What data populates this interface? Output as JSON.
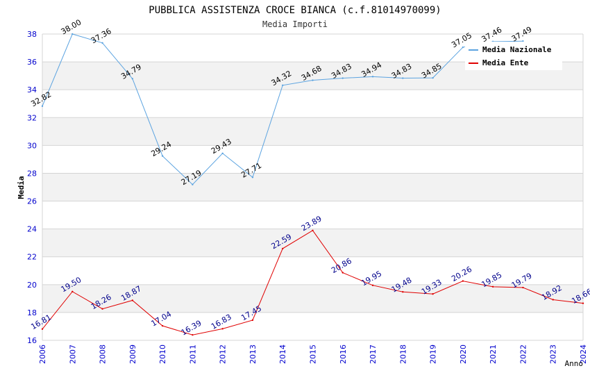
{
  "chart_data": {
    "type": "line",
    "title": "PUBBLICA ASSISTENZA CROCE BIANCA (c.f.81014970099)",
    "subtitle": "Media Importi",
    "xlabel": "Anno",
    "ylabel": "Media",
    "ylim": [
      16,
      38
    ],
    "y_ticks": [
      16,
      18,
      20,
      22,
      24,
      26,
      28,
      30,
      32,
      34,
      36,
      38
    ],
    "grid": true,
    "legend_position": "top-right",
    "categories": [
      "2006",
      "2007",
      "2008",
      "2009",
      "2010",
      "2011",
      "2012",
      "2013",
      "2014",
      "2015",
      "2016",
      "2017",
      "2018",
      "2019",
      "2020",
      "2021",
      "2022",
      "2023",
      "2024"
    ],
    "series": [
      {
        "name": "Media Nazionale",
        "color": "#5ba3e0",
        "label_color": "#000000",
        "values": [
          32.82,
          38.0,
          37.36,
          34.79,
          29.24,
          27.19,
          29.43,
          27.71,
          34.32,
          34.68,
          34.83,
          34.94,
          34.83,
          34.85,
          37.05,
          37.46,
          37.49,
          null,
          null
        ],
        "labels": [
          "32.82",
          "38.00",
          "37.36",
          "34.79",
          "29.24",
          "27.19",
          "29.43",
          "27.71",
          "34.32",
          "34.68",
          "34.83",
          "34.94",
          "34.83",
          "34.85",
          "37.05",
          "37.46",
          "37.49",
          "",
          ""
        ]
      },
      {
        "name": "Media Ente",
        "color": "#e00000",
        "label_color": "#00008b",
        "values": [
          16.81,
          19.5,
          18.26,
          18.87,
          17.04,
          16.39,
          16.83,
          17.45,
          22.59,
          23.89,
          20.86,
          19.95,
          19.48,
          19.33,
          20.26,
          19.85,
          19.79,
          18.92,
          18.66
        ],
        "labels": [
          "16.81",
          "19.50",
          "18.26",
          "18.87",
          "17.04",
          "16.39",
          "16.83",
          "17.45",
          "22.59",
          "23.89",
          "20.86",
          "19.95",
          "19.48",
          "19.33",
          "20.26",
          "19.85",
          "19.79",
          "18.92",
          "18.66"
        ]
      }
    ]
  },
  "colors": {
    "band": "#f2f2f2",
    "grid": "#d4d4d4",
    "axis_text": "#0000cd",
    "title_text": "#000000"
  }
}
